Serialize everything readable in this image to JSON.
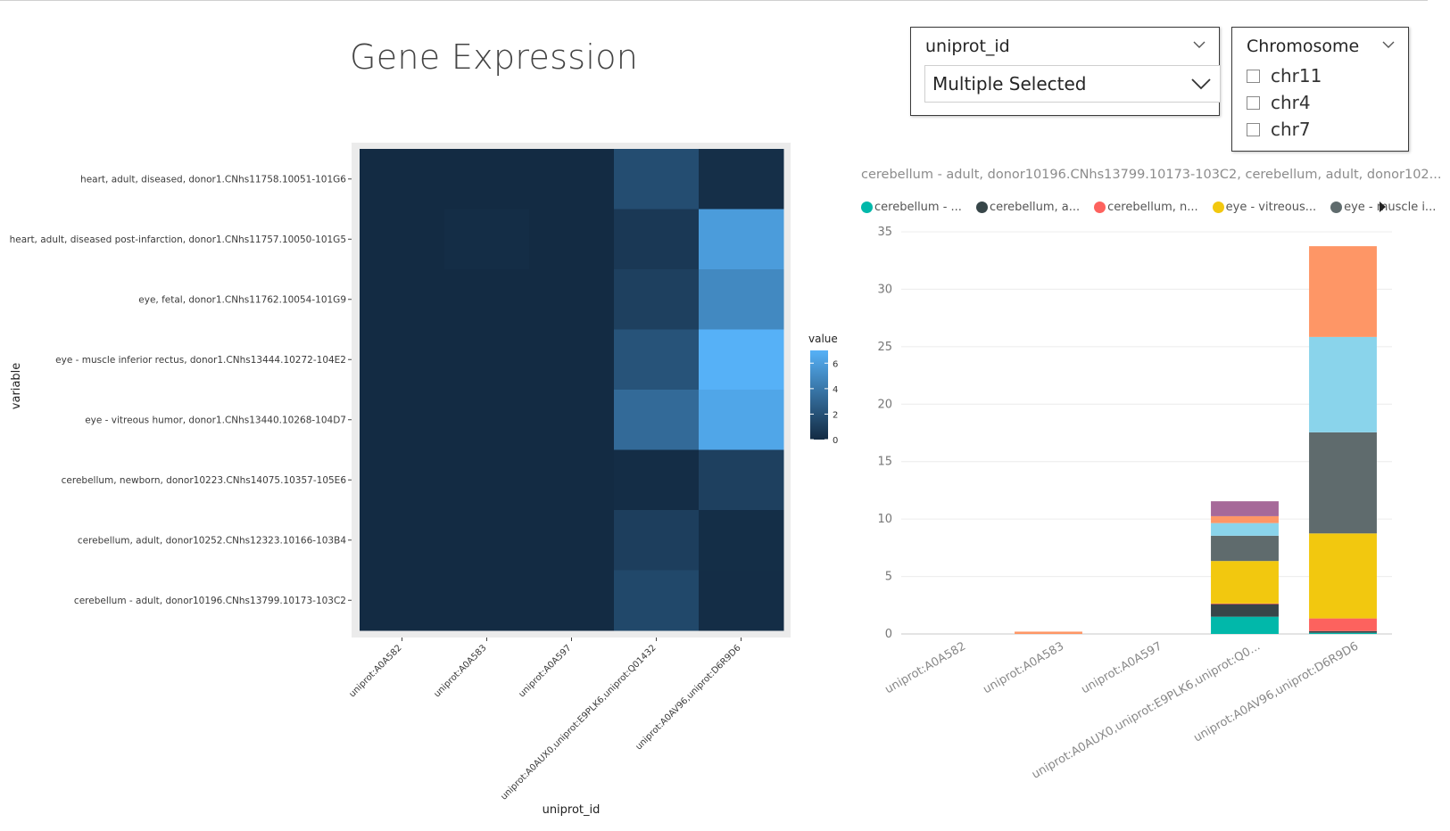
{
  "page": {
    "title": "Gene Expression"
  },
  "slicer_uniprot": {
    "title": "uniprot_id",
    "value": "Multiple Selected"
  },
  "slicer_chromosome": {
    "title": "Chromosome",
    "options": [
      "chr11",
      "chr4",
      "chr7"
    ]
  },
  "colors": {
    "teal": "#01B8AA",
    "dark": "#374649",
    "red": "#FD625E",
    "yellow": "#F2C80F",
    "grey": "#5F6B6D",
    "lightblue": "#8AD4EB",
    "orange": "#FE9666",
    "purple": "#A66999"
  },
  "chart_data": [
    {
      "type": "heatmap",
      "xlabel": "uniprot_id",
      "ylabel": "variable",
      "x": [
        "uniprot:A0A582",
        "uniprot:A0A583",
        "uniprot:A0A597",
        "uniprot:A0AUX0,uniprot:E9PLK6,uniprot:Q01432",
        "uniprot:A0AV96,uniprot:D6R9D6"
      ],
      "y": [
        "heart, adult, diseased, donor1.CNhs11758.10051-101G6",
        "heart, adult, diseased post-infarction, donor1.CNhs11757.10050-101G5",
        "eye, fetal, donor1.CNhs11762.10054-101G9",
        "eye - muscle inferior rectus, donor1.CNhs13444.10272-104E2",
        "eye - vitreous humor, donor1.CNhs13440.10268-104D7",
        "cerebellum, newborn, donor10223.CNhs14075.10357-105E6",
        "cerebellum, adult, donor10252.CNhs12323.10166-103B4",
        "cerebellum - adult, donor10196.CNhs13799.10173-103C2"
      ],
      "values": [
        [
          0,
          0,
          0,
          1.8,
          0.2
        ],
        [
          0,
          0.1,
          0,
          0.7,
          5.9
        ],
        [
          0,
          0,
          0,
          1.1,
          4.9
        ],
        [
          0,
          0,
          0,
          2.1,
          7.0
        ],
        [
          0,
          0,
          0,
          3.3,
          6.4
        ],
        [
          0,
          0,
          0,
          0.1,
          1.1
        ],
        [
          0,
          0,
          0,
          1.0,
          0.15
        ],
        [
          0,
          0,
          0,
          1.5,
          0.1
        ]
      ],
      "legend": {
        "title": "value",
        "ticks": [
          0,
          2,
          4,
          6
        ],
        "range": [
          0,
          7
        ]
      }
    },
    {
      "type": "bar",
      "stacked": true,
      "title": "cerebellum - adult, donor10196.CNhs13799.10173-103C2, cerebellum, adult, donor102...",
      "categories": [
        "uniprot:A0A582",
        "uniprot:A0A583",
        "uniprot:A0A597",
        "uniprot:A0AUX0,uniprot:E9PLK6,uniprot:Q0...",
        "uniprot:A0AV96,uniprot:D6R9D6"
      ],
      "legend_labels": [
        "cerebellum - ...",
        "cerebellum, a...",
        "cerebellum, n...",
        "eye - vitreous...",
        "eye - muscle i..."
      ],
      "ylim": [
        0,
        35
      ],
      "yticks": [
        0,
        5,
        10,
        15,
        20,
        25,
        30,
        35
      ],
      "series": [
        {
          "color": "teal",
          "values": [
            0,
            0,
            0,
            1.5,
            0.1
          ]
        },
        {
          "color": "dark",
          "values": [
            0,
            0,
            0,
            1.1,
            0.15
          ]
        },
        {
          "color": "red",
          "values": [
            0,
            0,
            0,
            0.05,
            1.1
          ]
        },
        {
          "color": "yellow",
          "values": [
            0,
            0,
            0,
            3.7,
            7.4
          ]
        },
        {
          "color": "grey",
          "values": [
            0,
            0,
            0,
            2.2,
            8.8
          ]
        },
        {
          "color": "lightblue",
          "values": [
            0,
            0,
            0,
            1.1,
            8.3
          ]
        },
        {
          "color": "orange",
          "values": [
            0,
            0.2,
            0,
            0.6,
            7.9
          ]
        },
        {
          "color": "purple",
          "values": [
            0,
            0,
            0,
            1.3,
            0
          ]
        }
      ]
    }
  ]
}
